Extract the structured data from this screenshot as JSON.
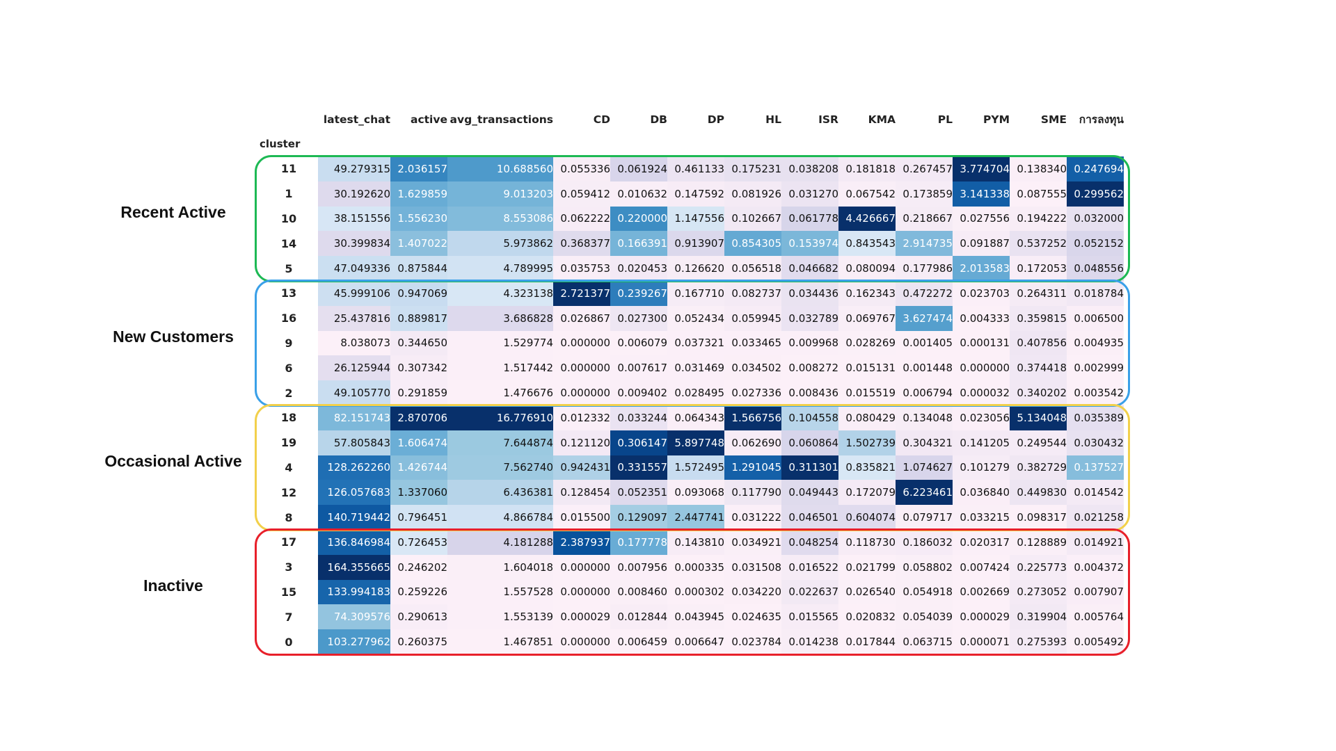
{
  "chart_data": {
    "type": "heatmap",
    "colormap": "Blues",
    "index_name": "cluster",
    "columns": [
      "latest_chat",
      "active",
      "avg_transactions",
      "CD",
      "DB",
      "DP",
      "HL",
      "ISR",
      "KMA",
      "PL",
      "PYM",
      "SME",
      "การลงทุน"
    ],
    "rows": [
      {
        "cluster": "11",
        "values": [
          49.279315,
          2.036157,
          10.68856,
          0.055336,
          0.061924,
          0.461133,
          0.175231,
          0.038208,
          0.181818,
          0.267457,
          3.774704,
          0.13834,
          0.247694
        ]
      },
      {
        "cluster": "1",
        "values": [
          30.19262,
          1.629859,
          9.013203,
          0.059412,
          0.010632,
          0.147592,
          0.081926,
          0.03127,
          0.067542,
          0.173859,
          3.141338,
          0.087555,
          0.299562
        ]
      },
      {
        "cluster": "10",
        "values": [
          38.151556,
          1.55623,
          8.553086,
          0.062222,
          0.22,
          1.147556,
          0.102667,
          0.061778,
          4.426667,
          0.218667,
          0.027556,
          0.194222,
          0.032
        ]
      },
      {
        "cluster": "14",
        "values": [
          30.399834,
          1.407022,
          5.973862,
          0.368377,
          0.166391,
          0.913907,
          0.854305,
          0.153974,
          0.843543,
          2.914735,
          0.091887,
          0.537252,
          0.052152
        ]
      },
      {
        "cluster": "5",
        "values": [
          47.049336,
          0.875844,
          4.789995,
          0.035753,
          0.020453,
          0.12662,
          0.056518,
          0.046682,
          0.080094,
          0.177986,
          2.013583,
          0.172053,
          0.048556
        ]
      },
      {
        "cluster": "13",
        "values": [
          45.999106,
          0.947069,
          4.323138,
          2.721377,
          0.239267,
          0.16771,
          0.082737,
          0.034436,
          0.162343,
          0.472272,
          0.023703,
          0.264311,
          0.018784
        ]
      },
      {
        "cluster": "16",
        "values": [
          25.437816,
          0.889817,
          3.686828,
          0.026867,
          0.0273,
          0.052434,
          0.059945,
          0.032789,
          0.069767,
          3.627474,
          0.004333,
          0.359815,
          0.0065
        ]
      },
      {
        "cluster": "9",
        "values": [
          8.038073,
          0.34465,
          1.529774,
          0.0,
          0.006079,
          0.037321,
          0.033465,
          0.009968,
          0.028269,
          0.001405,
          0.000131,
          0.407856,
          0.004935
        ]
      },
      {
        "cluster": "6",
        "values": [
          26.125944,
          0.307342,
          1.517442,
          0.0,
          0.007617,
          0.031469,
          0.034502,
          0.008272,
          0.015131,
          0.001448,
          0.0,
          0.374418,
          0.002999
        ]
      },
      {
        "cluster": "2",
        "values": [
          49.10577,
          0.291859,
          1.476676,
          0.0,
          0.009402,
          0.028495,
          0.027336,
          0.008436,
          0.015519,
          0.006794,
          3.2e-05,
          0.340202,
          0.003542
        ]
      },
      {
        "cluster": "18",
        "values": [
          82.151743,
          2.870706,
          16.77691,
          0.012332,
          0.033244,
          0.064343,
          1.566756,
          0.104558,
          0.080429,
          0.134048,
          0.023056,
          5.134048,
          0.035389
        ]
      },
      {
        "cluster": "19",
        "values": [
          57.805843,
          1.606474,
          7.644874,
          0.12112,
          0.306147,
          5.897748,
          0.06269,
          0.060864,
          1.502739,
          0.304321,
          0.141205,
          0.249544,
          0.030432
        ]
      },
      {
        "cluster": "4",
        "values": [
          128.26226,
          1.426744,
          7.56274,
          0.942431,
          0.331557,
          1.572495,
          1.291045,
          0.311301,
          0.835821,
          1.074627,
          0.101279,
          0.382729,
          0.137527
        ]
      },
      {
        "cluster": "12",
        "values": [
          126.057683,
          1.33706,
          6.436381,
          0.128454,
          0.052351,
          0.093068,
          0.11779,
          0.049443,
          0.172079,
          6.223461,
          0.03684,
          0.44983,
          0.014542
        ]
      },
      {
        "cluster": "8",
        "values": [
          140.719442,
          0.796451,
          4.866784,
          0.0155,
          0.129097,
          2.447741,
          0.031222,
          0.046501,
          0.604074,
          0.079717,
          0.033215,
          0.098317,
          0.021258
        ]
      },
      {
        "cluster": "17",
        "values": [
          136.846984,
          0.726453,
          4.181288,
          2.387937,
          0.177778,
          0.14381,
          0.034921,
          0.048254,
          0.11873,
          0.186032,
          0.020317,
          0.128889,
          0.014921
        ]
      },
      {
        "cluster": "3",
        "values": [
          164.355665,
          0.246202,
          1.604018,
          0.0,
          0.007956,
          0.000335,
          0.031508,
          0.016522,
          0.021799,
          0.058802,
          0.007424,
          0.225773,
          0.004372
        ]
      },
      {
        "cluster": "15",
        "values": [
          133.994183,
          0.259226,
          1.557528,
          0.0,
          0.00846,
          0.000302,
          0.03422,
          0.022637,
          0.02654,
          0.054918,
          0.002669,
          0.273052,
          0.007907
        ]
      },
      {
        "cluster": "7",
        "values": [
          74.309576,
          0.290613,
          1.553139,
          2.9e-05,
          0.012844,
          0.043945,
          0.024635,
          0.015565,
          0.020832,
          0.054039,
          2.9e-05,
          0.319904,
          0.005764
        ]
      },
      {
        "cluster": "0",
        "values": [
          103.277962,
          0.260375,
          1.467851,
          0.0,
          0.006459,
          0.006647,
          0.023784,
          0.014238,
          0.017844,
          0.063715,
          7.1e-05,
          0.275393,
          0.005492
        ]
      }
    ],
    "groups": [
      {
        "label": "Recent Active",
        "row_start": 0,
        "row_end": 4,
        "color": "#1db954"
      },
      {
        "label": "New Customers",
        "row_start": 5,
        "row_end": 9,
        "color": "#3aa0e8"
      },
      {
        "label": "Occasional Active",
        "row_start": 10,
        "row_end": 14,
        "color": "#f2d04b"
      },
      {
        "label": "Inactive",
        "row_start": 15,
        "row_end": 19,
        "color": "#e8202a"
      }
    ]
  }
}
